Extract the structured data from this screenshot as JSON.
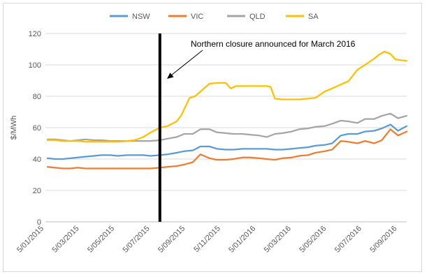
{
  "chart_data": {
    "type": "line",
    "ylabel": "$/MWh",
    "xlabel": "",
    "title": "",
    "ylim": [
      0,
      120
    ],
    "y_ticks": [
      0,
      20,
      40,
      60,
      80,
      100,
      120
    ],
    "x_tick_labels": [
      "5/01/2015",
      "5/03/2015",
      "5/05/2015",
      "5/07/2015",
      "5/09/2015",
      "5/11/2015",
      "5/01/2016",
      "5/03/2016",
      "5/05/2016",
      "5/07/2016",
      "5/09/2016"
    ],
    "x_range": [
      "2015-01-01",
      "2016-10-31"
    ],
    "grid": "horizontal",
    "legend_position": "top",
    "annotation": {
      "text": "Northern closure announced for March 2016",
      "marker_date": "2015-08-01"
    },
    "series": [
      {
        "name": "NSW",
        "color": "#5B9BD5",
        "points": [
          [
            "2015-01-05",
            40.5
          ],
          [
            "2015-01-19",
            40
          ],
          [
            "2015-02-02",
            40
          ],
          [
            "2015-02-16",
            40.5
          ],
          [
            "2015-03-02",
            41
          ],
          [
            "2015-03-16",
            41.5
          ],
          [
            "2015-04-01",
            42
          ],
          [
            "2015-04-15",
            42.5
          ],
          [
            "2015-05-01",
            42.5
          ],
          [
            "2015-05-15",
            42
          ],
          [
            "2015-06-01",
            42.5
          ],
          [
            "2015-06-15",
            42.5
          ],
          [
            "2015-07-01",
            42.5
          ],
          [
            "2015-07-15",
            42
          ],
          [
            "2015-08-01",
            42.5
          ],
          [
            "2015-08-15",
            43
          ],
          [
            "2015-09-01",
            44
          ],
          [
            "2015-09-15",
            45
          ],
          [
            "2015-10-01",
            45.5
          ],
          [
            "2015-10-15",
            48
          ],
          [
            "2015-11-01",
            48
          ],
          [
            "2015-11-15",
            46.5
          ],
          [
            "2015-12-01",
            46
          ],
          [
            "2015-12-15",
            46
          ],
          [
            "2016-01-01",
            46.5
          ],
          [
            "2016-01-15",
            46.5
          ],
          [
            "2016-02-01",
            46.5
          ],
          [
            "2016-02-15",
            46.5
          ],
          [
            "2016-03-01",
            46
          ],
          [
            "2016-03-15",
            46
          ],
          [
            "2016-04-01",
            46.5
          ],
          [
            "2016-04-15",
            47
          ],
          [
            "2016-05-01",
            47.5
          ],
          [
            "2016-05-15",
            48.5
          ],
          [
            "2016-06-01",
            49
          ],
          [
            "2016-06-15",
            50
          ],
          [
            "2016-07-01",
            55
          ],
          [
            "2016-07-15",
            56
          ],
          [
            "2016-08-01",
            56
          ],
          [
            "2016-08-15",
            57.5
          ],
          [
            "2016-09-01",
            58
          ],
          [
            "2016-09-15",
            59.5
          ],
          [
            "2016-10-01",
            62
          ],
          [
            "2016-10-15",
            58
          ],
          [
            "2016-10-31",
            61
          ]
        ]
      },
      {
        "name": "VIC",
        "color": "#ED7D31",
        "points": [
          [
            "2015-01-05",
            35
          ],
          [
            "2015-01-19",
            34.5
          ],
          [
            "2015-02-02",
            34
          ],
          [
            "2015-02-16",
            34
          ],
          [
            "2015-03-02",
            34.5
          ],
          [
            "2015-03-16",
            34
          ],
          [
            "2015-04-01",
            34
          ],
          [
            "2015-04-15",
            34
          ],
          [
            "2015-05-01",
            34
          ],
          [
            "2015-05-15",
            34
          ],
          [
            "2015-06-01",
            34
          ],
          [
            "2015-06-15",
            34
          ],
          [
            "2015-07-01",
            34
          ],
          [
            "2015-07-15",
            34
          ],
          [
            "2015-08-01",
            34.5
          ],
          [
            "2015-08-15",
            35
          ],
          [
            "2015-09-01",
            35.5
          ],
          [
            "2015-09-15",
            36.5
          ],
          [
            "2015-10-01",
            38
          ],
          [
            "2015-10-15",
            43
          ],
          [
            "2015-11-01",
            40.5
          ],
          [
            "2015-11-15",
            39.5
          ],
          [
            "2015-12-01",
            39.5
          ],
          [
            "2015-12-15",
            40
          ],
          [
            "2016-01-01",
            41
          ],
          [
            "2016-01-15",
            41
          ],
          [
            "2016-02-01",
            40.5
          ],
          [
            "2016-02-15",
            40
          ],
          [
            "2016-03-01",
            39.5
          ],
          [
            "2016-03-15",
            40.5
          ],
          [
            "2016-04-01",
            41
          ],
          [
            "2016-04-15",
            42
          ],
          [
            "2016-05-01",
            42.5
          ],
          [
            "2016-05-15",
            44
          ],
          [
            "2016-06-01",
            45
          ],
          [
            "2016-06-15",
            46
          ],
          [
            "2016-07-01",
            51.5
          ],
          [
            "2016-07-15",
            51
          ],
          [
            "2016-08-01",
            50
          ],
          [
            "2016-08-15",
            51.5
          ],
          [
            "2016-09-01",
            50
          ],
          [
            "2016-09-15",
            52
          ],
          [
            "2016-10-01",
            59
          ],
          [
            "2016-10-15",
            55
          ],
          [
            "2016-10-31",
            57.5
          ]
        ]
      },
      {
        "name": "QLD",
        "color": "#A5A5A5",
        "points": [
          [
            "2015-01-05",
            52.5
          ],
          [
            "2015-01-19",
            52.5
          ],
          [
            "2015-02-02",
            52
          ],
          [
            "2015-02-16",
            51.5
          ],
          [
            "2015-03-02",
            52
          ],
          [
            "2015-03-16",
            52.5
          ],
          [
            "2015-04-01",
            52
          ],
          [
            "2015-04-15",
            52
          ],
          [
            "2015-05-01",
            51.5
          ],
          [
            "2015-05-15",
            51.5
          ],
          [
            "2015-06-01",
            51.5
          ],
          [
            "2015-06-15",
            51.5
          ],
          [
            "2015-07-01",
            51.5
          ],
          [
            "2015-07-15",
            51.5
          ],
          [
            "2015-08-01",
            52
          ],
          [
            "2015-08-15",
            53
          ],
          [
            "2015-09-01",
            54
          ],
          [
            "2015-09-15",
            56
          ],
          [
            "2015-10-01",
            56
          ],
          [
            "2015-10-15",
            59
          ],
          [
            "2015-11-01",
            59
          ],
          [
            "2015-11-15",
            57
          ],
          [
            "2015-12-01",
            56.5
          ],
          [
            "2015-12-15",
            56
          ],
          [
            "2016-01-01",
            56
          ],
          [
            "2016-01-15",
            55.5
          ],
          [
            "2016-02-01",
            55
          ],
          [
            "2016-02-15",
            54
          ],
          [
            "2016-03-01",
            56
          ],
          [
            "2016-03-15",
            56.5
          ],
          [
            "2016-04-01",
            57.5
          ],
          [
            "2016-04-15",
            59
          ],
          [
            "2016-05-01",
            59.5
          ],
          [
            "2016-05-15",
            60.5
          ],
          [
            "2016-06-01",
            61
          ],
          [
            "2016-06-15",
            62.5
          ],
          [
            "2016-07-01",
            64.5
          ],
          [
            "2016-07-15",
            64
          ],
          [
            "2016-08-01",
            63
          ],
          [
            "2016-08-15",
            65.5
          ],
          [
            "2016-09-01",
            65.5
          ],
          [
            "2016-09-15",
            67.5
          ],
          [
            "2016-10-01",
            69
          ],
          [
            "2016-10-15",
            66
          ],
          [
            "2016-10-31",
            67.5
          ]
        ]
      },
      {
        "name": "SA",
        "color": "#FFC000",
        "points": [
          [
            "2015-01-05",
            52
          ],
          [
            "2015-01-19",
            52
          ],
          [
            "2015-02-02",
            51.5
          ],
          [
            "2015-02-16",
            51.5
          ],
          [
            "2015-03-02",
            51.5
          ],
          [
            "2015-03-16",
            51
          ],
          [
            "2015-04-01",
            51
          ],
          [
            "2015-04-15",
            51
          ],
          [
            "2015-05-01",
            51
          ],
          [
            "2015-05-15",
            51
          ],
          [
            "2015-06-01",
            51.5
          ],
          [
            "2015-06-15",
            52
          ],
          [
            "2015-07-01",
            54
          ],
          [
            "2015-07-15",
            57
          ],
          [
            "2015-08-01",
            60
          ],
          [
            "2015-08-15",
            61
          ],
          [
            "2015-09-01",
            64
          ],
          [
            "2015-09-10",
            68
          ],
          [
            "2015-09-25",
            79
          ],
          [
            "2015-10-05",
            80
          ],
          [
            "2015-10-15",
            83
          ],
          [
            "2015-10-25",
            86
          ],
          [
            "2015-11-01",
            88
          ],
          [
            "2015-11-15",
            88.5
          ],
          [
            "2015-12-01",
            88.5
          ],
          [
            "2015-12-10",
            85
          ],
          [
            "2015-12-20",
            86.5
          ],
          [
            "2016-01-01",
            86.5
          ],
          [
            "2016-01-15",
            86.5
          ],
          [
            "2016-02-01",
            86.5
          ],
          [
            "2016-02-15",
            86.5
          ],
          [
            "2016-02-22",
            86
          ],
          [
            "2016-03-01",
            78.5
          ],
          [
            "2016-03-15",
            78
          ],
          [
            "2016-04-01",
            78
          ],
          [
            "2016-04-15",
            78
          ],
          [
            "2016-05-01",
            78.5
          ],
          [
            "2016-05-15",
            79
          ],
          [
            "2016-06-01",
            83
          ],
          [
            "2016-06-15",
            85
          ],
          [
            "2016-07-01",
            87.5
          ],
          [
            "2016-07-15",
            89.5
          ],
          [
            "2016-08-01",
            97
          ],
          [
            "2016-08-15",
            100
          ],
          [
            "2016-09-01",
            104
          ],
          [
            "2016-09-10",
            106.5
          ],
          [
            "2016-09-20",
            108.5
          ],
          [
            "2016-10-01",
            107
          ],
          [
            "2016-10-10",
            103.5
          ],
          [
            "2016-10-20",
            103
          ],
          [
            "2016-10-31",
            102.5
          ]
        ]
      }
    ]
  }
}
